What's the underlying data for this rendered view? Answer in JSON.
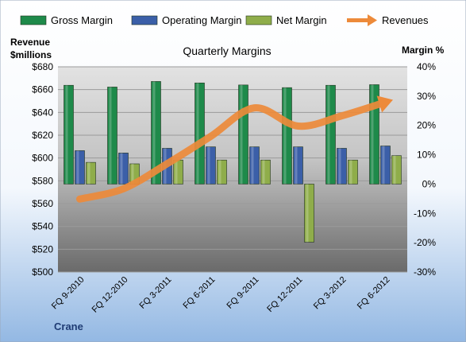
{
  "chart_data": {
    "type": "bar",
    "title": "Quarterly Margins",
    "left_axis_title": [
      "Revenue",
      "$millions"
    ],
    "right_axis_title": "Margin %",
    "corner_label": "Crane",
    "categories": [
      "FQ 9-2010",
      "FQ 12-2010",
      "FQ 3-2011",
      "FQ 6-2011",
      "FQ 9-2011",
      "FQ 12-2011",
      "FQ 3-2012",
      "FQ 6-2012"
    ],
    "left_axis": {
      "min": 500,
      "max": 680,
      "step": 20,
      "tick_labels": [
        "$500",
        "$520",
        "$540",
        "$560",
        "$580",
        "$600",
        "$620",
        "$640",
        "$660",
        "$680"
      ]
    },
    "right_axis": {
      "min": -30,
      "max": 40,
      "step": 10,
      "tick_labels": [
        "-30%",
        "-20%",
        "-10%",
        "0%",
        "10%",
        "20%",
        "30%",
        "40%"
      ]
    },
    "series": [
      {
        "name": "Gross Margin",
        "axis": "right",
        "kind": "bar",
        "color": "#1e8a4a",
        "values": [
          33.7,
          33.1,
          35.0,
          34.5,
          33.8,
          32.9,
          33.7,
          33.9
        ]
      },
      {
        "name": "Operating Margin",
        "axis": "right",
        "kind": "bar",
        "color": "#3b5fa8",
        "values": [
          11.4,
          10.6,
          12.2,
          12.7,
          12.7,
          12.7,
          12.2,
          13.0
        ]
      },
      {
        "name": "Net Margin",
        "axis": "right",
        "kind": "bar",
        "color": "#8fad4a",
        "values": [
          7.4,
          6.9,
          8.2,
          8.2,
          8.2,
          -19.8,
          8.2,
          9.7
        ]
      },
      {
        "name": "Revenues",
        "axis": "left",
        "kind": "line",
        "color": "#ed8a3a",
        "values": [
          564,
          573,
          595,
          619,
          644,
          628,
          637,
          649
        ]
      }
    ],
    "grid": true,
    "legend_position": "top"
  }
}
